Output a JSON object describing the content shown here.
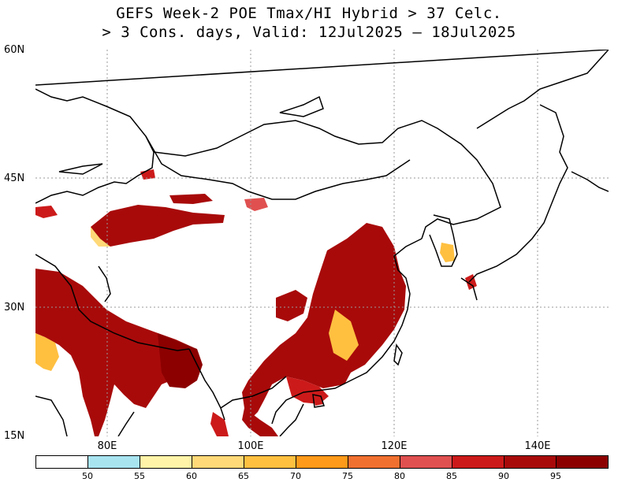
{
  "title": {
    "line1": "GEFS Week-2 POE Tmax/HI Hybrid > 37 Celc.",
    "line2": "> 3 Cons. days, Valid: 12Jul2025 – 18Jul2025"
  },
  "axes": {
    "lat_labels": [
      "60N",
      "45N",
      "30N",
      "15N"
    ],
    "lon_labels": [
      "80E",
      "100E",
      "120E",
      "140E"
    ]
  },
  "legend": {
    "thresholds": [
      "50",
      "55",
      "60",
      "65",
      "70",
      "75",
      "80",
      "85",
      "90",
      "95"
    ],
    "colors": [
      "#ffffff",
      "#a8e4f0",
      "#fff4a8",
      "#ffd978",
      "#ffc040",
      "#ff9a1a",
      "#f07030",
      "#e05050",
      "#cc1a1a",
      "#a80a0a",
      "#8c0000"
    ]
  },
  "map": {
    "domain_lon": [
      70,
      150
    ],
    "domain_lat": [
      15,
      60
    ],
    "projection": "lat-lon",
    "gridlines": "dotted",
    "features": [
      "coastlines",
      "country borders"
    ]
  }
}
